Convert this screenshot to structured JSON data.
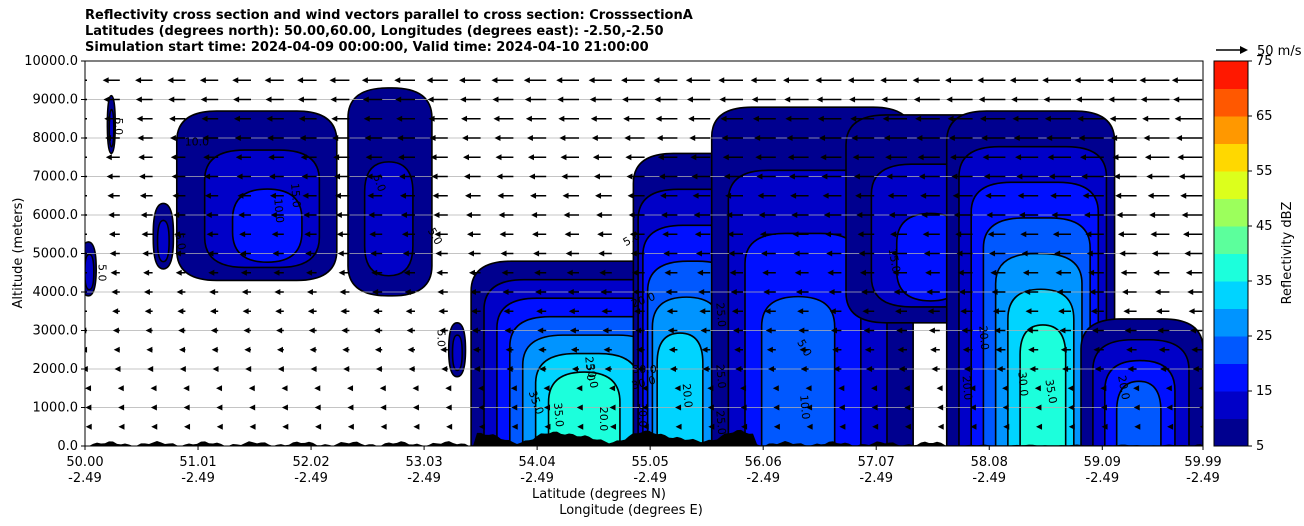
{
  "chart_data": {
    "type": "heatmap",
    "title_lines": [
      "Reflectivity cross section and wind vectors parallel to cross section: CrosssectionA",
      "Latitudes (degrees north): 50.00,60.00, Longitudes (degrees east): -2.50,-2.50",
      "Simulation start time: 2024-04-09 00:00:00, Valid time: 2024-04-10 21:00:00"
    ],
    "xlabel": "Latitude (degrees N)",
    "xlabel2": "Longitude (degrees E)",
    "ylabel": "Altitude (meters)",
    "colorbar_label": "Reflectivity dBZ",
    "quiver_key_label": "50 m/s",
    "xlim": [
      50.0,
      59.99
    ],
    "ylim": [
      0,
      10000
    ],
    "x_ticks": [
      {
        "lat": "50.00",
        "lon": "-2.49",
        "value": 50.0
      },
      {
        "lat": "51.01",
        "lon": "-2.49",
        "value": 51.01
      },
      {
        "lat": "52.02",
        "lon": "-2.49",
        "value": 52.02
      },
      {
        "lat": "53.03",
        "lon": "-2.49",
        "value": 53.03
      },
      {
        "lat": "54.04",
        "lon": "-2.49",
        "value": 54.04
      },
      {
        "lat": "55.05",
        "lon": "-2.49",
        "value": 55.05
      },
      {
        "lat": "56.06",
        "lon": "-2.49",
        "value": 56.06
      },
      {
        "lat": "57.07",
        "lon": "-2.49",
        "value": 57.07
      },
      {
        "lat": "58.08",
        "lon": "-2.49",
        "value": 58.08
      },
      {
        "lat": "59.09",
        "lon": "-2.49",
        "value": 59.09
      },
      {
        "lat": "59.99",
        "lon": "-2.49",
        "value": 59.99
      }
    ],
    "y_ticks": [
      {
        "label": "0.0",
        "value": 0
      },
      {
        "label": "1000.0",
        "value": 1000
      },
      {
        "label": "2000.0",
        "value": 2000
      },
      {
        "label": "3000.0",
        "value": 3000
      },
      {
        "label": "4000.0",
        "value": 4000
      },
      {
        "label": "5000.0",
        "value": 5000
      },
      {
        "label": "6000.0",
        "value": 6000
      },
      {
        "label": "7000.0",
        "value": 7000
      },
      {
        "label": "8000.0",
        "value": 8000
      },
      {
        "label": "9000.0",
        "value": 9000
      },
      {
        "label": "10000.0",
        "value": 10000
      }
    ],
    "grid": "horizontal",
    "colorbar": {
      "levels": [
        5,
        10,
        15,
        20,
        25,
        30,
        35,
        40,
        45,
        50,
        55,
        60,
        65,
        70,
        75
      ],
      "colors": [
        "#00008f",
        "#0000c8",
        "#0010ff",
        "#0058ff",
        "#0094ff",
        "#00d4ff",
        "#1cffdc",
        "#5cff9c",
        "#9cff5c",
        "#dcff1c",
        "#ffd800",
        "#ff9800",
        "#ff5800",
        "#ff1800",
        "#a80000"
      ],
      "tick_labels": [
        "5",
        "15",
        "25",
        "35",
        "45",
        "55",
        "65",
        "75"
      ]
    },
    "regions": [
      {
        "x": [
          49.96,
          50.1
        ],
        "top": 5300,
        "bottom": 3900,
        "peak": 10,
        "cx": 50.05
      },
      {
        "x": [
          50.2,
          50.27
        ],
        "top": 9100,
        "bottom": 7600,
        "peak": 10,
        "cx": 50.24
      },
      {
        "x": [
          50.61,
          50.79
        ],
        "top": 6300,
        "bottom": 4600,
        "peak": 10,
        "cx": 50.7
      },
      {
        "x": [
          50.82,
          52.25
        ],
        "top": 8700,
        "bottom": 4300,
        "peak": 15,
        "cx": 51.7
      },
      {
        "x": [
          52.35,
          53.1
        ],
        "top": 9300,
        "bottom": 3900,
        "peak": 12,
        "cx": 52.7
      },
      {
        "x": [
          53.25,
          53.4
        ],
        "top": 3200,
        "bottom": 1800,
        "peak": 10,
        "cx": 53.33
      },
      {
        "x": [
          53.45,
          55.8
        ],
        "top": 4800,
        "bottom": 0,
        "peak": 37,
        "cx": 54.4
      },
      {
        "x": [
          54.9,
          56.3
        ],
        "top": 7600,
        "bottom": 0,
        "peak": 31,
        "cx": 55.2
      },
      {
        "x": [
          55.6,
          57.4
        ],
        "top": 8800,
        "bottom": 0,
        "peak": 22,
        "cx": 56.3
      },
      {
        "x": [
          56.8,
          58.2
        ],
        "top": 8600,
        "bottom": 3200,
        "peak": 17,
        "cx": 57.6
      },
      {
        "x": [
          57.7,
          59.2
        ],
        "top": 8700,
        "bottom": 0,
        "peak": 36,
        "cx": 58.6
      },
      {
        "x": [
          58.9,
          59.99
        ],
        "top": 3300,
        "bottom": 0,
        "peak": 20,
        "cx": 59.4
      }
    ],
    "contour_labels": [
      {
        "text": "5.0",
        "x": 50.12,
        "y": 4500,
        "rot": 90
      },
      {
        "text": "5.0",
        "x": 50.27,
        "y": 8300,
        "rot": 90
      },
      {
        "text": "5.0",
        "x": 50.82,
        "y": 5300,
        "rot": 80
      },
      {
        "text": "10.0",
        "x": 51.0,
        "y": 7800,
        "rot": 0
      },
      {
        "text": "10.0",
        "x": 51.7,
        "y": 6100,
        "rot": 85
      },
      {
        "text": "15.0",
        "x": 51.85,
        "y": 6500,
        "rot": 85
      },
      {
        "text": "5.0",
        "x": 52.6,
        "y": 6800,
        "rot": 70
      },
      {
        "text": "5.0",
        "x": 53.1,
        "y": 5400,
        "rot": 60
      },
      {
        "text": "5.0",
        "x": 53.15,
        "y": 2800,
        "rot": 90
      },
      {
        "text": "20.0",
        "x": 55.0,
        "y": 3700,
        "rot": -20
      },
      {
        "text": "30.0",
        "x": 55.0,
        "y": 1900,
        "rot": 0
      },
      {
        "text": "30.0",
        "x": 55.0,
        "y": 1550,
        "rot": -15
      },
      {
        "text": "35.0",
        "x": 54.0,
        "y": 1100,
        "rot": 70
      },
      {
        "text": "35.0",
        "x": 54.2,
        "y": 800,
        "rot": 85
      },
      {
        "text": "30.0",
        "x": 54.5,
        "y": 1800,
        "rot": 80
      },
      {
        "text": "25.0",
        "x": 54.48,
        "y": 2000,
        "rot": 85
      },
      {
        "text": "20.0",
        "x": 54.6,
        "y": 700,
        "rot": 90
      },
      {
        "text": "30.0",
        "x": 54.95,
        "y": 800,
        "rot": 90
      },
      {
        "text": "5.0",
        "x": 54.9,
        "y": 5300,
        "rot": -30
      },
      {
        "text": "25.0",
        "x": 55.65,
        "y": 3400,
        "rot": 85
      },
      {
        "text": "25.0",
        "x": 55.65,
        "y": 1800,
        "rot": 85
      },
      {
        "text": "25.0",
        "x": 55.65,
        "y": 600,
        "rot": 85
      },
      {
        "text": "20.0",
        "x": 55.35,
        "y": 1300,
        "rot": 85
      },
      {
        "text": "10.0",
        "x": 56.4,
        "y": 1000,
        "rot": 85
      },
      {
        "text": "5.0",
        "x": 56.4,
        "y": 2500,
        "rot": 60
      },
      {
        "text": "15.0",
        "x": 57.2,
        "y": 4800,
        "rot": 80
      },
      {
        "text": "20.0",
        "x": 57.85,
        "y": 1500,
        "rot": 85
      },
      {
        "text": "20.0",
        "x": 58.0,
        "y": 2800,
        "rot": 85
      },
      {
        "text": "30.0",
        "x": 58.35,
        "y": 1600,
        "rot": 85
      },
      {
        "text": "35.0",
        "x": 58.6,
        "y": 1400,
        "rot": 80
      },
      {
        "text": "20.0",
        "x": 59.25,
        "y": 1500,
        "rot": 80
      }
    ],
    "wind": {
      "levels_m": [
        500,
        1000,
        1500,
        2000,
        2500,
        3000,
        3500,
        4000,
        4500,
        5000,
        5500,
        6000,
        6500,
        7000,
        7500,
        8000,
        8500,
        9000,
        9500
      ],
      "u_surface": -5,
      "u_top": -40
    }
  }
}
